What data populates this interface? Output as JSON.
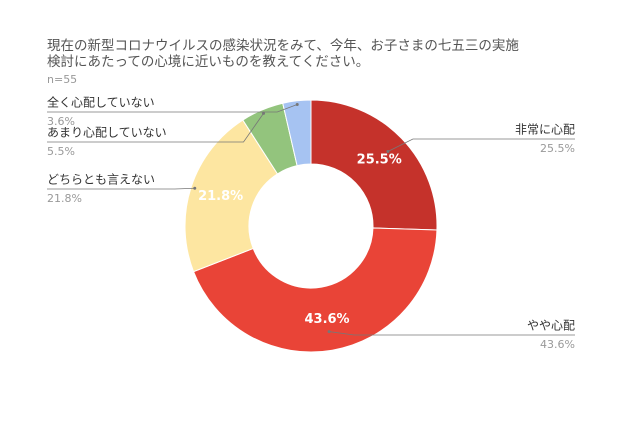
{
  "chart_data": {
    "type": "donut",
    "title": [
      "現在の新型コロナウイルスの感染状況をみて、今年、お子さまの七五三の実施",
      "検討にあたっての心境に近いものを教えてください。"
    ],
    "subtitle": "n=55",
    "categories": [
      "非常に心配",
      "やや心配",
      "どちらとも言えない",
      "あまり心配していない",
      "全く心配していない"
    ],
    "values": [
      25.5,
      43.6,
      21.8,
      5.5,
      3.6
    ],
    "value_labels": [
      "25.5%",
      "43.6%",
      "21.8%",
      "5.5%",
      "3.6%"
    ],
    "colors": [
      "#c5322b",
      "#e94437",
      "#fde6a1",
      "#93c47d",
      "#a6c3f2"
    ]
  }
}
